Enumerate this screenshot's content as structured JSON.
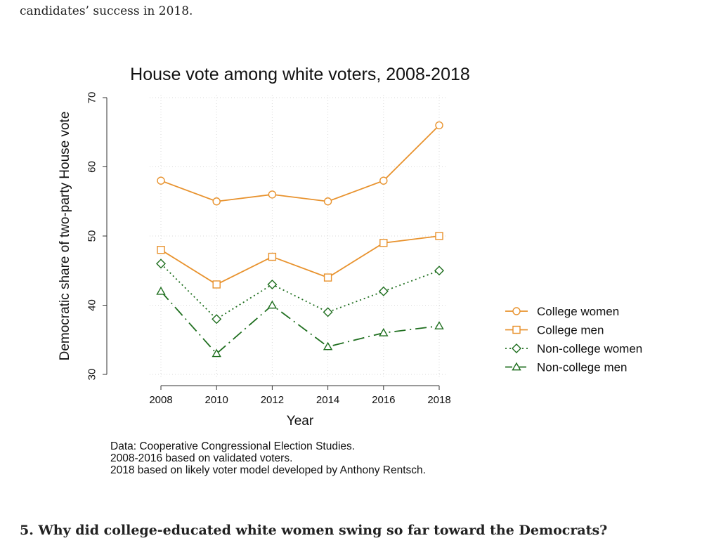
{
  "article": {
    "intro_text": "candidates’ success in 2018.",
    "next_heading": "5. Why did college-educated white women swing so far toward the Democrats?"
  },
  "chart_data": {
    "type": "line",
    "title": "House vote among white voters, 2008-2018",
    "xlabel": "Year",
    "ylabel": "Democratic share of two-party House vote",
    "x": [
      2008,
      2010,
      2012,
      2014,
      2016,
      2018
    ],
    "x_tick_labels": [
      "2008",
      "2010",
      "2012",
      "2014",
      "2016",
      "2018"
    ],
    "ylim": [
      30,
      70
    ],
    "y_ticks": [
      30,
      40,
      50,
      60,
      70
    ],
    "y_tick_labels": [
      "30",
      "40",
      "50",
      "60",
      "70"
    ],
    "grid": true,
    "legend_position": "right",
    "series": [
      {
        "name": "College women",
        "values": [
          58,
          55,
          56,
          55,
          58,
          66
        ],
        "color": "#e8922d",
        "marker": "circle",
        "dash": "solid"
      },
      {
        "name": "College men",
        "values": [
          48,
          43,
          47,
          44,
          49,
          50
        ],
        "color": "#e8922d",
        "marker": "square",
        "dash": "solid"
      },
      {
        "name": "Non-college women",
        "values": [
          46,
          38,
          43,
          39,
          42,
          45
        ],
        "color": "#1e6e1e",
        "marker": "diamond",
        "dash": "dotted"
      },
      {
        "name": "Non-college men",
        "values": [
          42,
          33,
          40,
          34,
          36,
          37
        ],
        "color": "#1e6e1e",
        "marker": "triangle",
        "dash": "longdash-dot"
      }
    ],
    "notes": [
      "Data: Cooperative Congressional Election Studies.",
      "2008-2016 based on validated voters.",
      "2018 based on likely voter model developed by Anthony Rentsch."
    ]
  }
}
